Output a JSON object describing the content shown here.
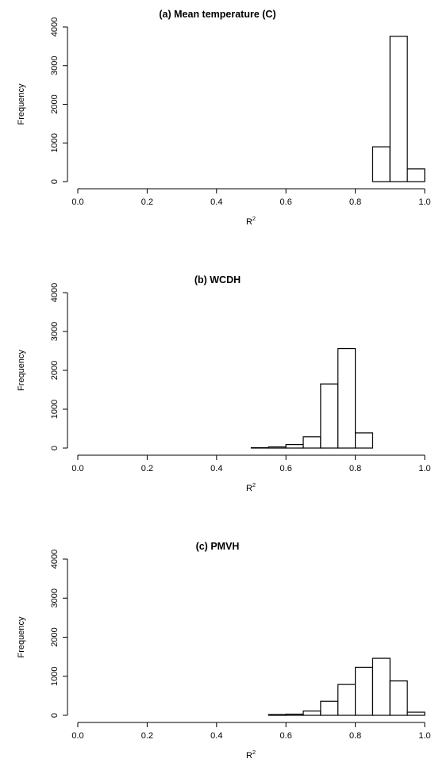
{
  "chart_data": [
    {
      "type": "bar",
      "title": "(a) Mean temperature (C)",
      "xlabel_base": "R",
      "xlabel_sup": "2",
      "ylabel": "Frequency",
      "xlim": [
        0,
        1
      ],
      "ylim": [
        0,
        4000
      ],
      "xticks": [
        "0.0",
        "0.2",
        "0.4",
        "0.6",
        "0.8",
        "1.0"
      ],
      "yticks": [
        "0",
        "1000",
        "2000",
        "3000",
        "4000"
      ],
      "bin_width": 0.05,
      "bins": [
        {
          "x0": 0.0,
          "x1": 0.05,
          "value": 0
        },
        {
          "x0": 0.05,
          "x1": 0.1,
          "value": 0
        },
        {
          "x0": 0.1,
          "x1": 0.15,
          "value": 0
        },
        {
          "x0": 0.15,
          "x1": 0.2,
          "value": 0
        },
        {
          "x0": 0.2,
          "x1": 0.25,
          "value": 0
        },
        {
          "x0": 0.25,
          "x1": 0.3,
          "value": 0
        },
        {
          "x0": 0.3,
          "x1": 0.35,
          "value": 0
        },
        {
          "x0": 0.35,
          "x1": 0.4,
          "value": 0
        },
        {
          "x0": 0.4,
          "x1": 0.45,
          "value": 0
        },
        {
          "x0": 0.45,
          "x1": 0.5,
          "value": 0
        },
        {
          "x0": 0.5,
          "x1": 0.55,
          "value": 0
        },
        {
          "x0": 0.55,
          "x1": 0.6,
          "value": 0
        },
        {
          "x0": 0.6,
          "x1": 0.65,
          "value": 0
        },
        {
          "x0": 0.65,
          "x1": 0.7,
          "value": 0
        },
        {
          "x0": 0.7,
          "x1": 0.75,
          "value": 0
        },
        {
          "x0": 0.75,
          "x1": 0.8,
          "value": 0
        },
        {
          "x0": 0.8,
          "x1": 0.85,
          "value": 0
        },
        {
          "x0": 0.85,
          "x1": 0.9,
          "value": 900
        },
        {
          "x0": 0.9,
          "x1": 0.95,
          "value": 3760
        },
        {
          "x0": 0.95,
          "x1": 1.0,
          "value": 330
        }
      ]
    },
    {
      "type": "bar",
      "title": "(b) WCDH",
      "xlabel_base": "R",
      "xlabel_sup": "2",
      "ylabel": "Frequency",
      "xlim": [
        0,
        1
      ],
      "ylim": [
        0,
        4000
      ],
      "xticks": [
        "0.0",
        "0.2",
        "0.4",
        "0.6",
        "0.8",
        "1.0"
      ],
      "yticks": [
        "0",
        "1000",
        "2000",
        "3000",
        "4000"
      ],
      "bin_width": 0.05,
      "bins": [
        {
          "x0": 0.0,
          "x1": 0.05,
          "value": 0
        },
        {
          "x0": 0.05,
          "x1": 0.1,
          "value": 0
        },
        {
          "x0": 0.1,
          "x1": 0.15,
          "value": 0
        },
        {
          "x0": 0.15,
          "x1": 0.2,
          "value": 0
        },
        {
          "x0": 0.2,
          "x1": 0.25,
          "value": 0
        },
        {
          "x0": 0.25,
          "x1": 0.3,
          "value": 0
        },
        {
          "x0": 0.3,
          "x1": 0.35,
          "value": 0
        },
        {
          "x0": 0.35,
          "x1": 0.4,
          "value": 0
        },
        {
          "x0": 0.4,
          "x1": 0.45,
          "value": 0
        },
        {
          "x0": 0.45,
          "x1": 0.5,
          "value": 0
        },
        {
          "x0": 0.5,
          "x1": 0.55,
          "value": 10
        },
        {
          "x0": 0.55,
          "x1": 0.6,
          "value": 30
        },
        {
          "x0": 0.6,
          "x1": 0.65,
          "value": 90
        },
        {
          "x0": 0.65,
          "x1": 0.7,
          "value": 290
        },
        {
          "x0": 0.7,
          "x1": 0.75,
          "value": 1650
        },
        {
          "x0": 0.75,
          "x1": 0.8,
          "value": 2560
        },
        {
          "x0": 0.8,
          "x1": 0.85,
          "value": 390
        },
        {
          "x0": 0.85,
          "x1": 0.9,
          "value": 0
        },
        {
          "x0": 0.9,
          "x1": 0.95,
          "value": 0
        },
        {
          "x0": 0.95,
          "x1": 1.0,
          "value": 0
        }
      ]
    },
    {
      "type": "bar",
      "title": "(c) PMVH",
      "xlabel_base": "R",
      "xlabel_sup": "2",
      "ylabel": "Frequency",
      "xlim": [
        0,
        1
      ],
      "ylim": [
        0,
        4000
      ],
      "xticks": [
        "0.0",
        "0.2",
        "0.4",
        "0.6",
        "0.8",
        "1.0"
      ],
      "yticks": [
        "0",
        "1000",
        "2000",
        "3000",
        "4000"
      ],
      "bin_width": 0.05,
      "bins": [
        {
          "x0": 0.0,
          "x1": 0.05,
          "value": 0
        },
        {
          "x0": 0.05,
          "x1": 0.1,
          "value": 0
        },
        {
          "x0": 0.1,
          "x1": 0.15,
          "value": 0
        },
        {
          "x0": 0.15,
          "x1": 0.2,
          "value": 0
        },
        {
          "x0": 0.2,
          "x1": 0.25,
          "value": 0
        },
        {
          "x0": 0.25,
          "x1": 0.3,
          "value": 0
        },
        {
          "x0": 0.3,
          "x1": 0.35,
          "value": 0
        },
        {
          "x0": 0.35,
          "x1": 0.4,
          "value": 0
        },
        {
          "x0": 0.4,
          "x1": 0.45,
          "value": 0
        },
        {
          "x0": 0.45,
          "x1": 0.5,
          "value": 0
        },
        {
          "x0": 0.5,
          "x1": 0.55,
          "value": 0
        },
        {
          "x0": 0.55,
          "x1": 0.6,
          "value": 20
        },
        {
          "x0": 0.6,
          "x1": 0.65,
          "value": 30
        },
        {
          "x0": 0.65,
          "x1": 0.7,
          "value": 110
        },
        {
          "x0": 0.7,
          "x1": 0.75,
          "value": 360
        },
        {
          "x0": 0.75,
          "x1": 0.8,
          "value": 790
        },
        {
          "x0": 0.8,
          "x1": 0.85,
          "value": 1230
        },
        {
          "x0": 0.85,
          "x1": 0.9,
          "value": 1460
        },
        {
          "x0": 0.9,
          "x1": 0.95,
          "value": 880
        },
        {
          "x0": 0.95,
          "x1": 1.0,
          "value": 80
        }
      ]
    }
  ]
}
